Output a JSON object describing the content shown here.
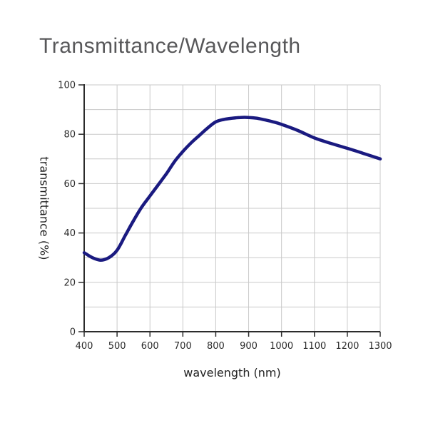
{
  "title": "Transmittance/Wavelength",
  "chart_data": {
    "type": "line",
    "title": "Transmittance/Wavelength",
    "xlabel": "wavelength (nm)",
    "ylabel": "transmittance (%)",
    "xlim": [
      400,
      1300
    ],
    "ylim": [
      0,
      100
    ],
    "x_tick_labels": [
      400,
      500,
      600,
      700,
      800,
      900,
      1000,
      1100,
      1200,
      1300
    ],
    "y_tick_labels": [
      0,
      20,
      40,
      60,
      80,
      100
    ],
    "x_grid_step": 100,
    "y_grid_step": 10,
    "grid": true,
    "legend": false,
    "series": [
      {
        "name": "transmittance",
        "color": "#1a1a80",
        "line_width": 4.5,
        "x": [
          400,
          425,
          450,
          475,
          500,
          525,
          550,
          575,
          600,
          625,
          650,
          675,
          700,
          725,
          750,
          775,
          800,
          825,
          850,
          875,
          900,
          925,
          950,
          975,
          1000,
          1050,
          1100,
          1150,
          1200,
          1250,
          1300
        ],
        "y": [
          32,
          30,
          29,
          30,
          33,
          39,
          45,
          50.5,
          55,
          59.5,
          64,
          69,
          73,
          76.5,
          79.5,
          82.5,
          85,
          86,
          86.5,
          86.8,
          86.8,
          86.5,
          85.8,
          85,
          84,
          81.5,
          78.5,
          76.3,
          74.3,
          72.2,
          70
        ]
      }
    ]
  },
  "colors": {
    "title": "#58585a",
    "axis": "#2b2b2b",
    "grid": "#c9c9c9",
    "tick_text": "#2b2b2b",
    "background": "#ffffff"
  }
}
